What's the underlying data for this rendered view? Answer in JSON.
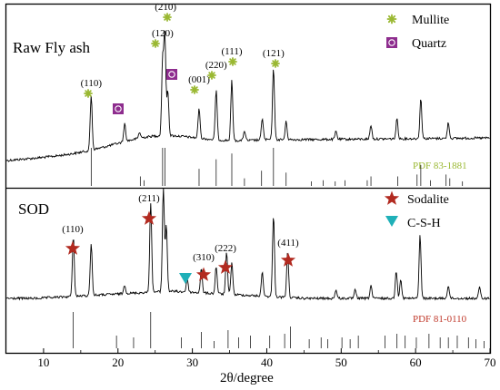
{
  "colors": {
    "mullite": "#9ab832",
    "quartz": "#8e2d8e",
    "sodalite": "#b22a20",
    "csh": "#1fb0b8",
    "pdf_top": "#9ab832",
    "pdf_bottom": "#c0392b"
  },
  "chart_data": {
    "type": "line",
    "x_label": "2θ/degree",
    "x_range": [
      5,
      70
    ],
    "x_ticks": [
      "10",
      "20",
      "30",
      "40",
      "50",
      "60",
      "70"
    ],
    "y_axis": "offset intensity (no scale shown)",
    "panels": [
      {
        "title": "Raw Fly ash",
        "legend": [
          {
            "label": "Mullite",
            "marker": "asterisk",
            "color": "#9ab832"
          },
          {
            "label": "Quartz",
            "marker": "square",
            "color": "#8e2d8e"
          }
        ],
        "reference_card": "PDF 83-1881",
        "hkl_labels": [
          {
            "text": "(110)",
            "x": 16.4,
            "marker": "mullite"
          },
          {
            "text": "(120)",
            "x": 26.0,
            "marker": "mullite"
          },
          {
            "text": "(210)",
            "x": 26.4,
            "marker": "mullite"
          },
          {
            "text": "(001)",
            "x": 30.9,
            "marker": "mullite"
          },
          {
            "text": "(220)",
            "x": 33.2,
            "marker": "mullite"
          },
          {
            "text": "(111)",
            "x": 35.3,
            "marker": "mullite"
          },
          {
            "text": "(121)",
            "x": 40.9,
            "marker": "mullite"
          }
        ],
        "quartz_markers": [
          20.9,
          26.6
        ],
        "peaks": [
          {
            "x": 16.4,
            "h": 0.55
          },
          {
            "x": 20.9,
            "h": 0.18
          },
          {
            "x": 22.9,
            "h": 0.06
          },
          {
            "x": 26.0,
            "h": 0.75
          },
          {
            "x": 26.3,
            "h": 1.0
          },
          {
            "x": 26.7,
            "h": 0.45
          },
          {
            "x": 30.9,
            "h": 0.3
          },
          {
            "x": 33.2,
            "h": 0.5
          },
          {
            "x": 35.3,
            "h": 0.6
          },
          {
            "x": 37.0,
            "h": 0.1
          },
          {
            "x": 39.4,
            "h": 0.22
          },
          {
            "x": 40.9,
            "h": 0.72
          },
          {
            "x": 42.6,
            "h": 0.18
          },
          {
            "x": 49.3,
            "h": 0.08
          },
          {
            "x": 54.0,
            "h": 0.14
          },
          {
            "x": 57.5,
            "h": 0.2
          },
          {
            "x": 60.7,
            "h": 0.4
          },
          {
            "x": 64.4,
            "h": 0.16
          }
        ],
        "reference_lines": [
          {
            "x": 16.4,
            "h": 1.0
          },
          {
            "x": 23.0,
            "h": 0.25
          },
          {
            "x": 23.5,
            "h": 0.15
          },
          {
            "x": 26.0,
            "h": 1.0
          },
          {
            "x": 26.3,
            "h": 1.0
          },
          {
            "x": 30.9,
            "h": 0.45
          },
          {
            "x": 33.2,
            "h": 0.7
          },
          {
            "x": 35.3,
            "h": 0.85
          },
          {
            "x": 37.0,
            "h": 0.2
          },
          {
            "x": 39.3,
            "h": 0.4
          },
          {
            "x": 40.9,
            "h": 1.0
          },
          {
            "x": 42.6,
            "h": 0.35
          },
          {
            "x": 46.0,
            "h": 0.12
          },
          {
            "x": 47.6,
            "h": 0.15
          },
          {
            "x": 49.2,
            "h": 0.12
          },
          {
            "x": 50.5,
            "h": 0.15
          },
          {
            "x": 53.5,
            "h": 0.15
          },
          {
            "x": 54.0,
            "h": 0.25
          },
          {
            "x": 57.6,
            "h": 0.25
          },
          {
            "x": 60.2,
            "h": 0.3
          },
          {
            "x": 60.7,
            "h": 0.55
          },
          {
            "x": 62.0,
            "h": 0.15
          },
          {
            "x": 64.1,
            "h": 0.3
          },
          {
            "x": 64.6,
            "h": 0.2
          },
          {
            "x": 66.3,
            "h": 0.12
          }
        ]
      },
      {
        "title": "SOD",
        "legend": [
          {
            "label": "Sodalite",
            "marker": "star",
            "color": "#b22a20"
          },
          {
            "label": "C-S-H",
            "marker": "triangle",
            "color": "#1fb0b8"
          }
        ],
        "reference_card": "PDF 81-0110",
        "hkl_labels": [
          {
            "text": "(110)",
            "x": 14.0,
            "marker": "sodalite"
          },
          {
            "text": "(211)",
            "x": 24.4,
            "marker": "sodalite"
          },
          {
            "text": "(310)",
            "x": 31.4,
            "marker": "sodalite"
          },
          {
            "text": "(222)",
            "x": 34.6,
            "marker": "sodalite"
          },
          {
            "text": "(411)",
            "x": 42.8,
            "marker": "sodalite"
          }
        ],
        "csh_markers": [
          29.3
        ],
        "peaks": [
          {
            "x": 14.0,
            "h": 0.55
          },
          {
            "x": 16.4,
            "h": 0.48
          },
          {
            "x": 20.9,
            "h": 0.08
          },
          {
            "x": 24.4,
            "h": 0.82
          },
          {
            "x": 26.1,
            "h": 0.95
          },
          {
            "x": 26.5,
            "h": 0.6
          },
          {
            "x": 29.3,
            "h": 0.12
          },
          {
            "x": 31.2,
            "h": 0.22
          },
          {
            "x": 33.2,
            "h": 0.25
          },
          {
            "x": 34.6,
            "h": 0.38
          },
          {
            "x": 35.3,
            "h": 0.3
          },
          {
            "x": 39.4,
            "h": 0.22
          },
          {
            "x": 40.9,
            "h": 0.75
          },
          {
            "x": 42.8,
            "h": 0.42
          },
          {
            "x": 49.3,
            "h": 0.08
          },
          {
            "x": 51.9,
            "h": 0.08
          },
          {
            "x": 54.0,
            "h": 0.12
          },
          {
            "x": 57.4,
            "h": 0.25
          },
          {
            "x": 58.0,
            "h": 0.18
          },
          {
            "x": 60.6,
            "h": 0.58
          },
          {
            "x": 64.4,
            "h": 0.12
          },
          {
            "x": 68.6,
            "h": 0.1
          }
        ],
        "reference_lines": [
          {
            "x": 14.0,
            "h": 1.0
          },
          {
            "x": 19.8,
            "h": 0.35
          },
          {
            "x": 22.1,
            "h": 0.3
          },
          {
            "x": 24.4,
            "h": 1.0
          },
          {
            "x": 28.5,
            "h": 0.3
          },
          {
            "x": 31.2,
            "h": 0.45
          },
          {
            "x": 32.9,
            "h": 0.2
          },
          {
            "x": 34.8,
            "h": 0.5
          },
          {
            "x": 36.2,
            "h": 0.3
          },
          {
            "x": 37.8,
            "h": 0.35
          },
          {
            "x": 40.4,
            "h": 0.35
          },
          {
            "x": 42.4,
            "h": 0.4
          },
          {
            "x": 43.2,
            "h": 0.6
          },
          {
            "x": 45.7,
            "h": 0.25
          },
          {
            "x": 47.3,
            "h": 0.3
          },
          {
            "x": 48.2,
            "h": 0.25
          },
          {
            "x": 50.1,
            "h": 0.3
          },
          {
            "x": 51.2,
            "h": 0.25
          },
          {
            "x": 52.3,
            "h": 0.35
          },
          {
            "x": 55.9,
            "h": 0.35
          },
          {
            "x": 57.5,
            "h": 0.4
          },
          {
            "x": 58.6,
            "h": 0.35
          },
          {
            "x": 60.1,
            "h": 0.3
          },
          {
            "x": 61.8,
            "h": 0.4
          },
          {
            "x": 63.3,
            "h": 0.3
          },
          {
            "x": 64.4,
            "h": 0.3
          },
          {
            "x": 65.6,
            "h": 0.35
          },
          {
            "x": 67.1,
            "h": 0.3
          },
          {
            "x": 68.1,
            "h": 0.25
          },
          {
            "x": 69.2,
            "h": 0.2
          }
        ]
      }
    ]
  }
}
